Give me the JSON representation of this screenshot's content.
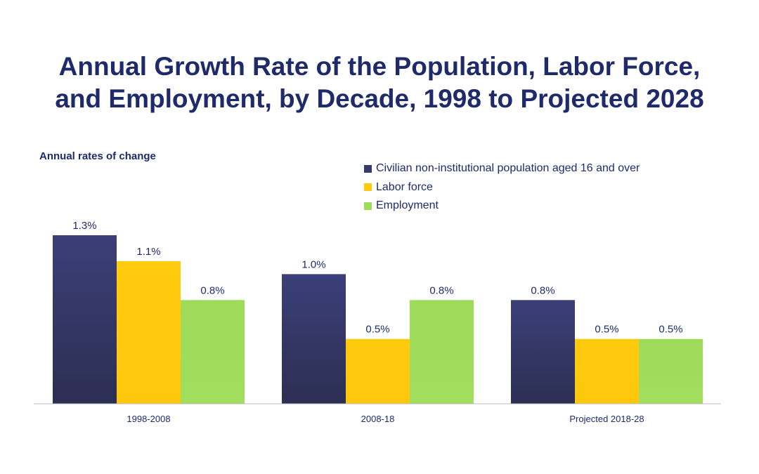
{
  "chart_data": {
    "type": "bar",
    "title": "Annual Growth Rate of the Population, Labor Force, and Employment, by Decade, 1998 to Projected 2028",
    "title_lines": [
      "Annual Growth Rate of the Population, Labor Force,",
      "and Employment, by Decade, 1998 to Projected 2028"
    ],
    "ylabel": "Annual rates of change",
    "xlabel": "",
    "categories": [
      "1998-2008",
      "2008-18",
      "Projected 2018-28"
    ],
    "series": [
      {
        "name": "Civilian non-institutional population aged 16 and over",
        "color": "#363a6a",
        "values": [
          1.3,
          1.0,
          0.8
        ],
        "labels": [
          "1.3%",
          "1.0%",
          "0.8%"
        ]
      },
      {
        "name": "Labor force",
        "color": "#ffc90e",
        "values": [
          1.1,
          0.5,
          0.5
        ],
        "labels": [
          "1.1%",
          "0.5%",
          "0.5%"
        ]
      },
      {
        "name": "Employment",
        "color": "#9fdc5a",
        "values": [
          0.8,
          0.8,
          0.5
        ],
        "labels": [
          "0.8%",
          "0.8%",
          "0.5%"
        ]
      }
    ],
    "ylim": [
      0,
      1.3
    ],
    "grid": false,
    "legend_position": "top-right"
  }
}
